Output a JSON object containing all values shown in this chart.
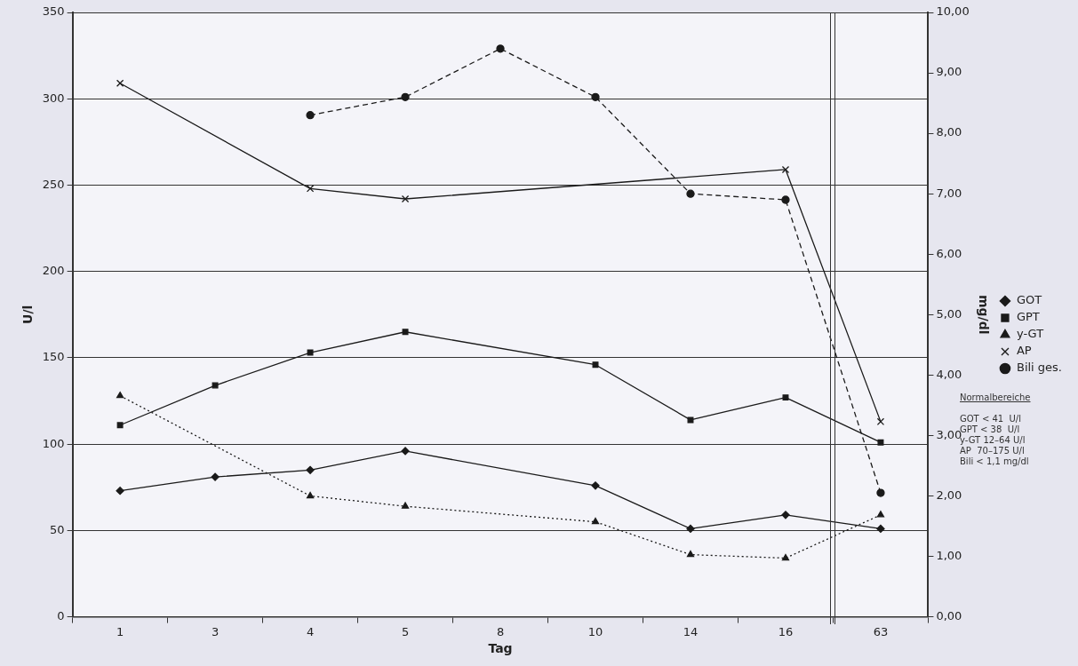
{
  "chart_data": {
    "type": "line",
    "xlabel": "Tag",
    "ylabel": "U/l",
    "y2label": "mg/dl",
    "categories": [
      "1",
      "3",
      "4",
      "5",
      "8",
      "10",
      "14",
      "16",
      "63"
    ],
    "series": [
      {
        "name": "GOT",
        "color": "#1a1a1a",
        "marker": "diamond",
        "line_style": "solid",
        "values": [
          73,
          81,
          85,
          96,
          null,
          76,
          51,
          59,
          51
        ]
      },
      {
        "name": "GPT",
        "color": "#1a1a1a",
        "marker": "square",
        "line_style": "solid",
        "values": [
          111,
          134,
          153,
          165,
          null,
          146,
          114,
          127,
          101
        ]
      },
      {
        "name": "y-GT",
        "color": "#1a1a1a",
        "marker": "triangle",
        "line_style": "dotted",
        "values": [
          128,
          null,
          70,
          64,
          null,
          55,
          36,
          34,
          59
        ]
      },
      {
        "name": "AP",
        "color": "#1a1a1a",
        "marker": "cross",
        "line_style": "solid",
        "values": [
          309,
          null,
          248,
          242,
          null,
          null,
          null,
          259,
          113
        ]
      },
      {
        "name": "Bili ges.",
        "color": "#1a1a1a",
        "marker": "circle",
        "line_style": "dashed",
        "axis": "y2",
        "values": [
          null,
          null,
          8.3,
          8.6,
          9.4,
          8.6,
          7.0,
          6.9,
          2.05
        ]
      }
    ],
    "ylim": [
      0,
      350
    ],
    "yticks": [
      0,
      50,
      100,
      150,
      200,
      250,
      300,
      350
    ],
    "y2lim": [
      0,
      10
    ],
    "y2ticks": [
      {
        "value": 0,
        "label": "0,00"
      },
      {
        "value": 1,
        "label": "1,00"
      },
      {
        "value": 2,
        "label": "2,00"
      },
      {
        "value": 3,
        "label": "3,00"
      },
      {
        "value": 4,
        "label": "4,00"
      },
      {
        "value": 5,
        "label": "5,00"
      },
      {
        "value": 6,
        "label": "6,00"
      },
      {
        "value": 7,
        "label": "7,00"
      },
      {
        "value": 8,
        "label": "8,00"
      },
      {
        "value": 9,
        "label": "9,00"
      },
      {
        "value": 10,
        "label": "10,00"
      }
    ],
    "grid": "y",
    "legend": "right",
    "annotations": [
      "Normalbereiche",
      "GOT < 41  U/l",
      "GPT < 38  U/l",
      "y-GT 12–64 U/l",
      "AP  70–175 U/l",
      "Bili < 1,1 mg/dl"
    ]
  }
}
